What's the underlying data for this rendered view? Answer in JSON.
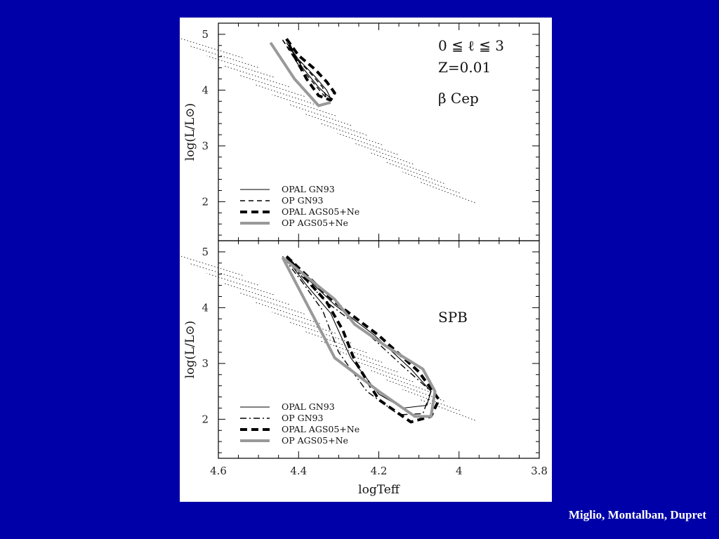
{
  "credit": "Miglio, Montalban, Dupret",
  "chart_data": [
    {
      "type": "line",
      "panel": "top",
      "xlabel": "",
      "ylabel": "log(L/L⊙)",
      "xlim": [
        4.6,
        3.8
      ],
      "ylim": [
        1.3,
        5.2
      ],
      "yticks": [
        2,
        3,
        4,
        5
      ],
      "annotations": [
        "0 ≦ ℓ ≦ 3",
        "Z=0.01",
        "β Cep"
      ],
      "legend_position": "bottom-left",
      "background_tracks": "dotted",
      "series": [
        {
          "name": "OPAL GN93",
          "style": "thin-solid",
          "x": [
            4.43,
            4.4,
            4.36,
            4.33,
            4.32,
            4.35,
            4.39,
            4.43
          ],
          "y": [
            4.85,
            4.55,
            4.25,
            4.0,
            3.85,
            4.05,
            4.4,
            4.85
          ]
        },
        {
          "name": "OP GN93",
          "style": "thin-dashed",
          "x": [
            4.44,
            4.41,
            4.37,
            4.34,
            4.33,
            4.36,
            4.4,
            4.44
          ],
          "y": [
            4.9,
            4.6,
            4.3,
            4.05,
            3.85,
            4.1,
            4.45,
            4.9
          ]
        },
        {
          "name": "OPAL AGS05+Ne",
          "style": "thick-dashed",
          "x": [
            4.43,
            4.4,
            4.36,
            4.33,
            4.31,
            4.32,
            4.35,
            4.38,
            4.41,
            4.43
          ],
          "y": [
            4.92,
            4.62,
            4.38,
            4.15,
            3.95,
            3.82,
            3.9,
            4.2,
            4.6,
            4.92
          ]
        },
        {
          "name": "OP AGS05+Ne",
          "style": "thick-gray",
          "x": [
            4.47,
            4.41,
            4.35,
            4.32
          ],
          "y": [
            4.85,
            4.2,
            3.72,
            3.78
          ]
        }
      ]
    },
    {
      "type": "line",
      "panel": "bottom",
      "xlabel": "logTeff",
      "ylabel": "log(L/L⊙)",
      "xlim": [
        4.6,
        3.8
      ],
      "ylim": [
        1.3,
        5.2
      ],
      "xticks": [
        4.6,
        4.4,
        4.2,
        4.0,
        3.8
      ],
      "yticks": [
        2,
        3,
        4,
        5
      ],
      "annotations": [
        "SPB"
      ],
      "legend_position": "bottom-left",
      "background_tracks": "dotted",
      "series": [
        {
          "name": "OPAL GN93",
          "style": "thin-solid",
          "x": [
            4.43,
            4.31,
            4.21,
            4.12,
            4.07,
            4.08,
            4.14,
            4.2,
            4.27,
            4.32,
            4.38,
            4.43
          ],
          "y": [
            4.88,
            4.05,
            3.5,
            2.9,
            2.5,
            2.25,
            2.2,
            2.45,
            3.1,
            3.9,
            4.4,
            4.88
          ]
        },
        {
          "name": "OP GN93",
          "style": "thin-dashdot",
          "x": [
            4.44,
            4.33,
            4.23,
            4.14,
            4.07,
            4.09,
            4.15,
            4.23,
            4.3,
            4.34,
            4.39,
            4.44
          ],
          "y": [
            4.92,
            4.1,
            3.55,
            2.95,
            2.5,
            2.1,
            2.08,
            2.5,
            3.2,
            3.95,
            4.45,
            4.92
          ]
        },
        {
          "name": "OPAL AGS05+Ne",
          "style": "thick-dashed",
          "x": [
            4.43,
            4.31,
            4.2,
            4.1,
            4.05,
            4.07,
            4.12,
            4.2,
            4.26,
            4.29,
            4.33,
            4.38,
            4.43
          ],
          "y": [
            4.92,
            4.1,
            3.5,
            2.85,
            2.35,
            2.05,
            1.95,
            2.35,
            3.05,
            3.6,
            4.1,
            4.5,
            4.92
          ]
        },
        {
          "name": "OP AGS05+Ne",
          "style": "thick-gray",
          "x": [
            4.44,
            4.36,
            4.31,
            4.2,
            4.11,
            4.07,
            4.06,
            4.09,
            4.18,
            4.26,
            4.31,
            4.44
          ],
          "y": [
            4.9,
            3.8,
            3.1,
            2.5,
            2.05,
            2.05,
            2.5,
            2.9,
            3.3,
            3.7,
            4.15,
            4.9
          ]
        }
      ]
    }
  ]
}
